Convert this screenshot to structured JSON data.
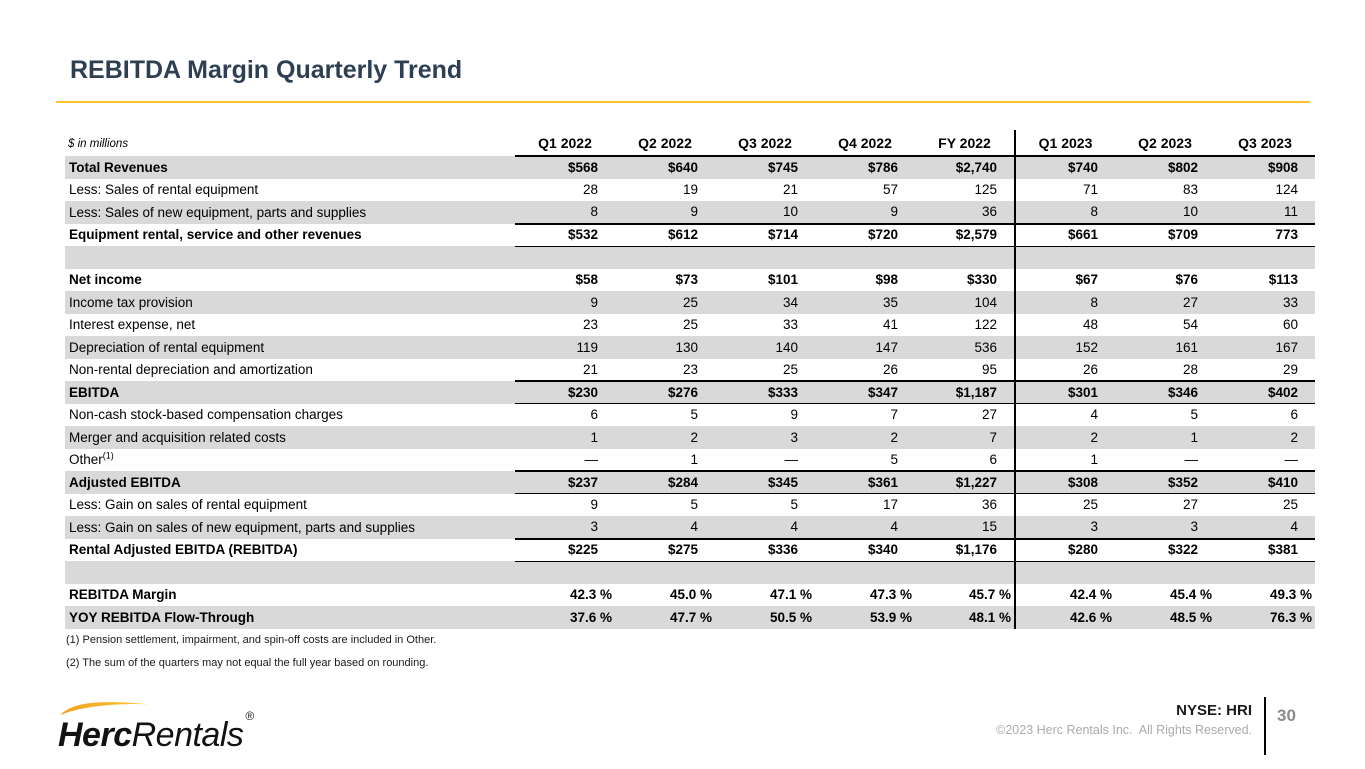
{
  "slide": {
    "title": "REBITDA Margin Quarterly Trend",
    "page_number": "30",
    "ticker": "NYSE: HRI",
    "copyright": "©2023 Herc Rentals Inc.  All Rights Reserved.",
    "footnotes": [
      "(1) Pension settlement, impairment, and spin-off costs are included in Other.",
      "(2) The sum of the quarters may not equal the full year based on rounding."
    ]
  },
  "logo": {
    "herc": "Herc",
    "rentals": "Rentals",
    "reg": "®"
  },
  "colors": {
    "title_navy": "#2E3F54",
    "accent_yellow": "#FFC52F",
    "row_gray": "#D9D9D9",
    "copyright_gray": "#ABABAB",
    "page_number_gray": "#8A8A8A",
    "logo_swoosh_start": "#F1A01E",
    "logo_swoosh_end": "#FFC937"
  },
  "chart_data": {
    "type": "table",
    "units_label": "$ in millions",
    "columns": [
      "Q1 2022",
      "Q2 2022",
      "Q3 2022",
      "Q4 2022",
      "FY 2022",
      "Q1 2023",
      "Q2 2023",
      "Q3 2023"
    ],
    "rows": [
      {
        "label": "Total Revenues",
        "bold": true,
        "shade": true,
        "values": [
          "$568",
          "$640",
          "$745",
          "$786",
          "$2,740",
          "$740",
          "$802",
          "$908"
        ]
      },
      {
        "label": "Less: Sales of rental equipment",
        "values": [
          "28",
          "19",
          "21",
          "57",
          "125",
          "71",
          "83",
          "124"
        ]
      },
      {
        "label": "Less: Sales of new equipment, parts and supplies",
        "shade": true,
        "values": [
          "8",
          "9",
          "10",
          "9",
          "36",
          "8",
          "10",
          "11"
        ]
      },
      {
        "label": "Equipment rental, service and other revenues",
        "bold": true,
        "rule": true,
        "values": [
          "$532",
          "$612",
          "$714",
          "$720",
          "$2,579",
          "$661",
          "$709",
          "773"
        ]
      },
      {
        "blank": true,
        "shade": true
      },
      {
        "label": "Net income",
        "bold": true,
        "values": [
          "$58",
          "$73",
          "$101",
          "$98",
          "$330",
          "$67",
          "$76",
          "$113"
        ]
      },
      {
        "label": "Income tax provision",
        "shade": true,
        "values": [
          "9",
          "25",
          "34",
          "35",
          "104",
          "8",
          "27",
          "33"
        ]
      },
      {
        "label": "Interest expense, net",
        "values": [
          "23",
          "25",
          "33",
          "41",
          "122",
          "48",
          "54",
          "60"
        ]
      },
      {
        "label": "Depreciation of rental equipment",
        "shade": true,
        "values": [
          "119",
          "130",
          "140",
          "147",
          "536",
          "152",
          "161",
          "167"
        ]
      },
      {
        "label": "Non-rental depreciation and amortization",
        "values": [
          "21",
          "23",
          "25",
          "26",
          "95",
          "26",
          "28",
          "29"
        ]
      },
      {
        "label": "EBITDA",
        "bold": true,
        "shade": true,
        "rule": true,
        "values": [
          "$230",
          "$276",
          "$333",
          "$347",
          "$1,187",
          "$301",
          "$346",
          "$402"
        ]
      },
      {
        "label": "Non-cash stock-based compensation charges",
        "values": [
          "6",
          "5",
          "9",
          "7",
          "27",
          "4",
          "5",
          "6"
        ]
      },
      {
        "label": "Merger and acquisition related costs",
        "shade": true,
        "values": [
          "1",
          "2",
          "3",
          "2",
          "7",
          "2",
          "1",
          "2"
        ]
      },
      {
        "label": "Other",
        "sup": "(1)",
        "values": [
          "—",
          "1",
          "—",
          "5",
          "6",
          "1",
          "—",
          "—"
        ]
      },
      {
        "label": "Adjusted EBITDA",
        "bold": true,
        "shade": true,
        "rule": true,
        "values": [
          "$237",
          "$284",
          "$345",
          "$361",
          "$1,227",
          "$308",
          "$352",
          "$410"
        ]
      },
      {
        "label": "Less: Gain on sales of rental equipment",
        "values": [
          "9",
          "5",
          "5",
          "17",
          "36",
          "25",
          "27",
          "25"
        ]
      },
      {
        "label": "Less: Gain on sales of new equipment, parts and supplies",
        "shade": true,
        "values": [
          "3",
          "4",
          "4",
          "4",
          "15",
          "3",
          "3",
          "4"
        ]
      },
      {
        "label": "Rental Adjusted EBITDA (REBITDA)",
        "bold": true,
        "rule": true,
        "values": [
          "$225",
          "$275",
          "$336",
          "$340",
          "$1,176",
          "$280",
          "$322",
          "$381"
        ]
      },
      {
        "blank": true,
        "shade": true
      },
      {
        "label": "REBITDA Margin",
        "bold": true,
        "pct": true,
        "values": [
          "42.3 %",
          "45.0 %",
          "47.1 %",
          "47.3 %",
          "45.7 %",
          "42.4 %",
          "45.4 %",
          "49.3 %"
        ]
      },
      {
        "label": "YOY REBITDA Flow-Through",
        "bold": true,
        "shade": true,
        "pct": true,
        "values": [
          "37.6 %",
          "47.7 %",
          "50.5 %",
          "53.9 %",
          "48.1 %",
          "42.6 %",
          "48.5 %",
          "76.3 %"
        ]
      }
    ]
  }
}
